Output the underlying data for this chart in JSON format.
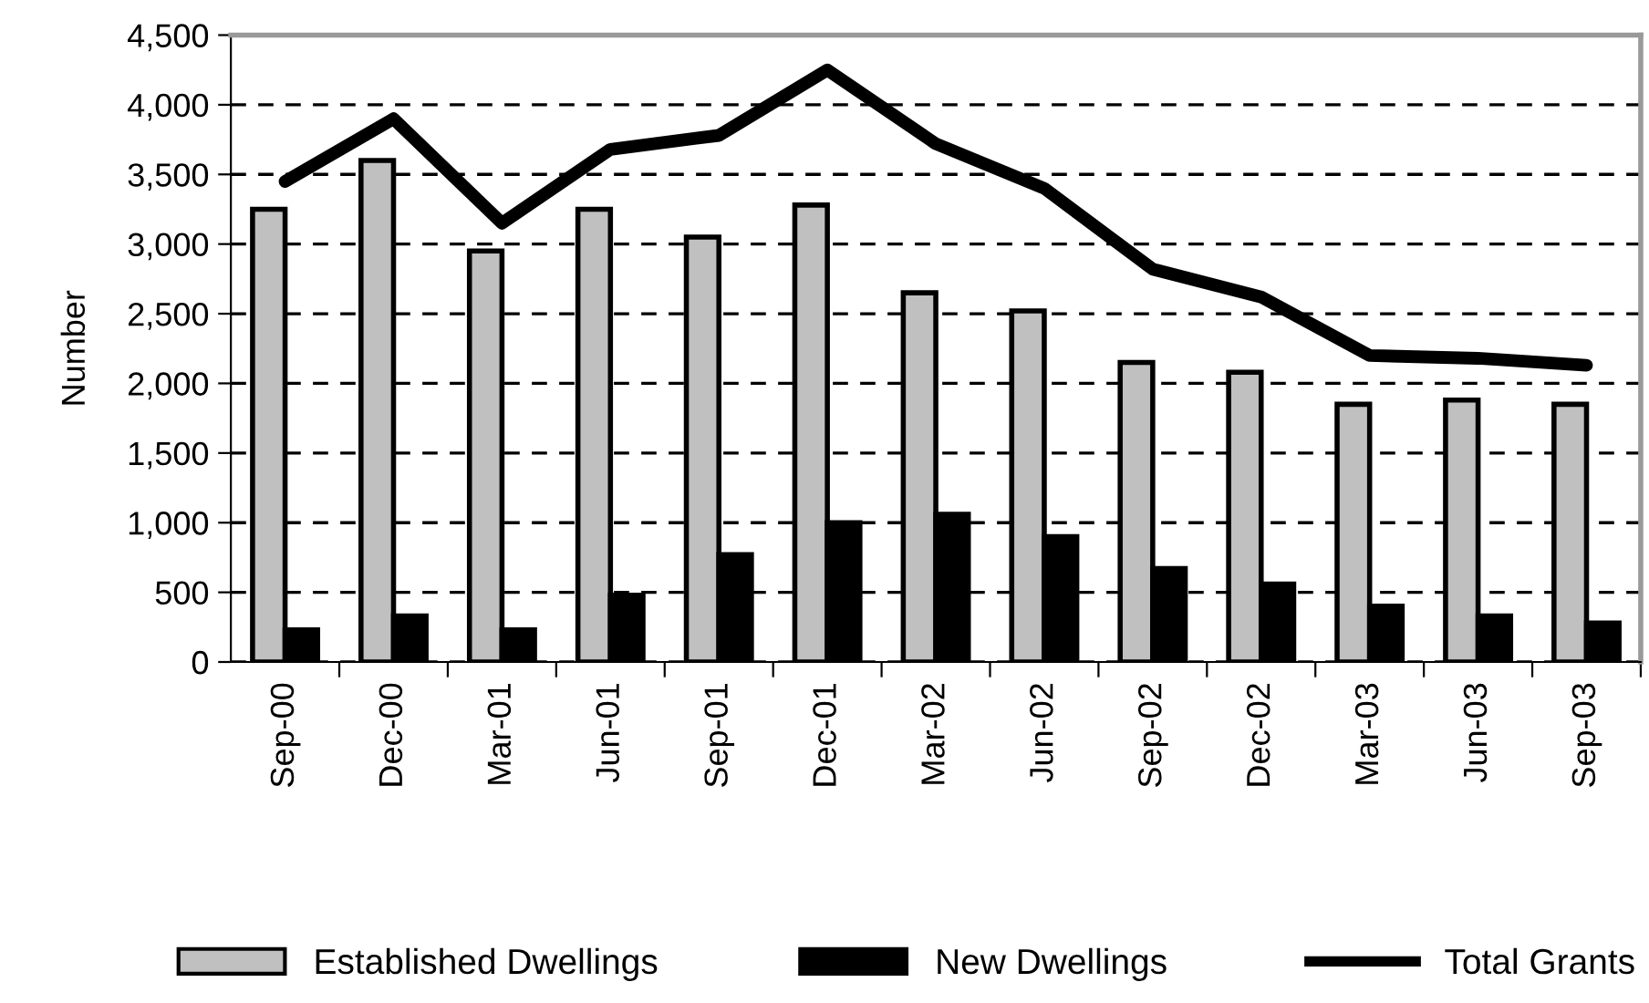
{
  "chart_data": {
    "type": "bar",
    "ylabel": "Number",
    "categories": [
      "Sep-00",
      "Dec-00",
      "Mar-01",
      "Jun-01",
      "Sep-01",
      "Dec-01",
      "Mar-02",
      "Jun-02",
      "Sep-02",
      "Dec-02",
      "Mar-03",
      "Jun-03",
      "Sep-03"
    ],
    "series": [
      {
        "name": "Established Dwellings",
        "color": "#c0c0c0",
        "values": [
          3250,
          3600,
          2950,
          3250,
          3050,
          3280,
          2650,
          2520,
          2150,
          2080,
          1850,
          1880,
          1850
        ]
      },
      {
        "name": "New Dwellings",
        "color": "#000000",
        "values": [
          230,
          330,
          230,
          480,
          770,
          1000,
          1060,
          900,
          670,
          560,
          400,
          330,
          280
        ]
      },
      {
        "name": "Total Grants",
        "type": "line",
        "color": "#000000",
        "values": [
          3450,
          3900,
          3150,
          3680,
          3780,
          4250,
          3720,
          3400,
          2820,
          2620,
          2200,
          2180,
          2130
        ]
      }
    ],
    "ylim": [
      0,
      4500
    ],
    "yticks": [
      0,
      {
        "value": 500,
        "label": "500"
      },
      {
        "value": 1000,
        "label": "1,000"
      },
      {
        "value": 1500,
        "label": "1,500"
      },
      {
        "value": 2000,
        "label": "2,000"
      },
      {
        "value": 2500,
        "label": "2,500"
      },
      {
        "value": 3000,
        "label": "3,000"
      },
      {
        "value": 3500,
        "label": "3,500"
      },
      {
        "value": 4000,
        "label": "4,000"
      },
      {
        "value": 4500,
        "label": "4,500"
      }
    ],
    "grid": "y",
    "legend": "bottom",
    "line_style": "solid",
    "marker": "none"
  }
}
